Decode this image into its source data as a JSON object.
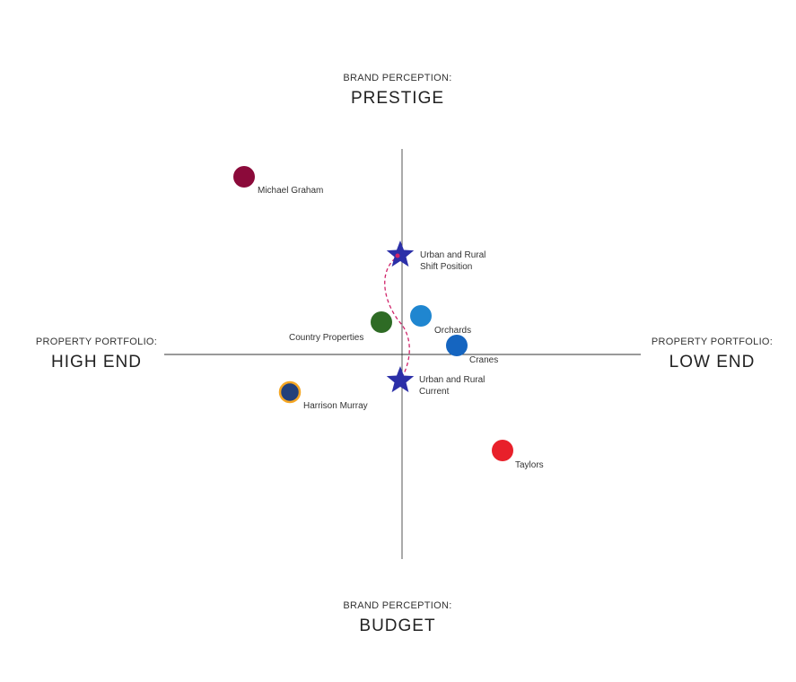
{
  "axes": {
    "top": {
      "sub": "BRAND PERCEPTION:",
      "main": "PRESTIGE"
    },
    "bottom": {
      "sub": "BRAND PERCEPTION:",
      "main": "BUDGET"
    },
    "left": {
      "sub": "PROPERTY PORTFOLIO:",
      "main": "HIGH END"
    },
    "right": {
      "sub": "PROPERTY PORTFOLIO:",
      "main": "LOW END"
    }
  },
  "competitors": [
    {
      "name": "Michael Graham",
      "color": "#8b0a3a"
    },
    {
      "name": "Country Properties",
      "color": "#2e6b25"
    },
    {
      "name": "Orchards",
      "color": "#1f86d0"
    },
    {
      "name": "Cranes",
      "color": "#1565c0"
    },
    {
      "name": "Harrison Murray",
      "color": "#23407a",
      "outline": "#f5a623"
    },
    {
      "name": "Taylors",
      "color": "#e8202a"
    }
  ],
  "brand": {
    "color": "#2b2fa8",
    "shift": {
      "lines": [
        "Urban and Rural",
        "Shift Position"
      ]
    },
    "current": {
      "lines": [
        "Urban and Rural",
        "Current"
      ]
    }
  },
  "path_color": "#d0246a"
}
